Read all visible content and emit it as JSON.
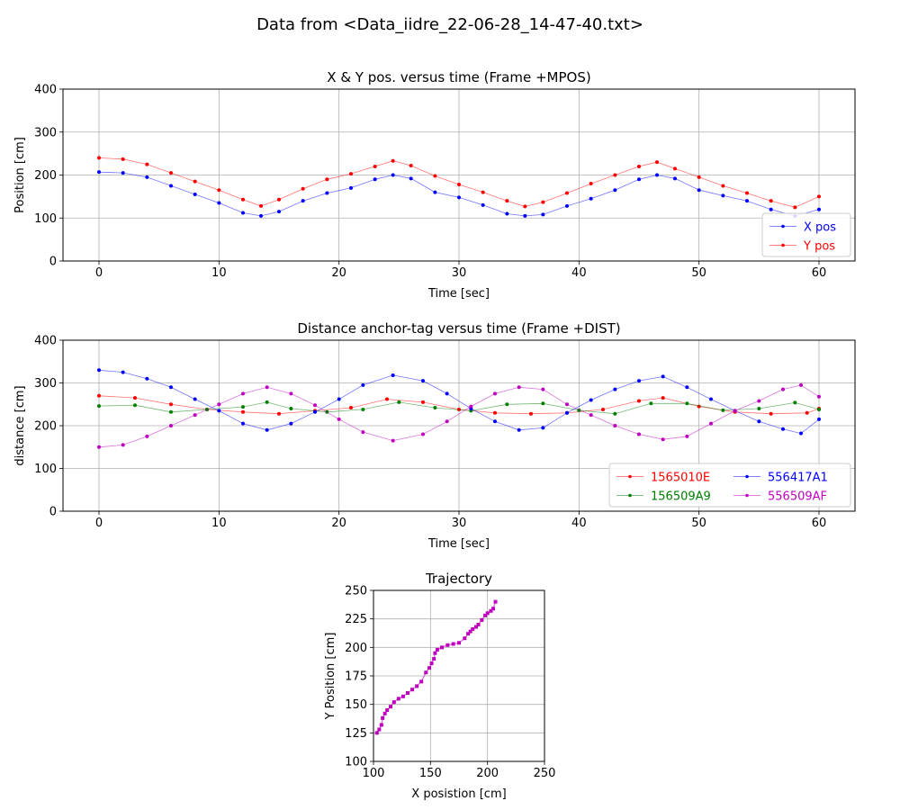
{
  "figure": {
    "suptitle": "Data from <Data_iidre_22-06-28_14-47-40.txt>"
  },
  "colors": {
    "red": "#ff0000",
    "blue": "#0000ff",
    "green": "#008000",
    "magenta": "#bf00bf",
    "grid": "#b0b0b0"
  },
  "chart_data": [
    {
      "id": "pos",
      "type": "line",
      "title": "X & Y pos. versus time (Frame +MPOS)",
      "xlabel": "Time [sec]",
      "ylabel": "Position [cm]",
      "xlim": [
        -3,
        63
      ],
      "ylim": [
        0,
        400
      ],
      "xticks": [
        0,
        10,
        20,
        30,
        40,
        50,
        60
      ],
      "yticks": [
        0,
        100,
        200,
        300,
        400
      ],
      "grid": true,
      "legend": {
        "placement": "lower-right",
        "columns": 1
      },
      "series": [
        {
          "name": "X pos",
          "color": "blue",
          "x": [
            0,
            2,
            4,
            6,
            8,
            10,
            12,
            13.5,
            15,
            17,
            19,
            21,
            23,
            24.5,
            26,
            28,
            30,
            32,
            34,
            35.5,
            37,
            39,
            41,
            43,
            45,
            46.5,
            48,
            50,
            52,
            54,
            56,
            58,
            60
          ],
          "y": [
            207,
            205,
            195,
            175,
            155,
            135,
            112,
            105,
            115,
            140,
            158,
            170,
            190,
            200,
            192,
            160,
            148,
            130,
            110,
            105,
            108,
            128,
            145,
            165,
            190,
            200,
            192,
            165,
            152,
            140,
            120,
            105,
            120
          ]
        },
        {
          "name": "Y pos",
          "color": "red",
          "x": [
            0,
            2,
            4,
            6,
            8,
            10,
            12,
            13.5,
            15,
            17,
            19,
            21,
            23,
            24.5,
            26,
            28,
            30,
            32,
            34,
            35.5,
            37,
            39,
            41,
            43,
            45,
            46.5,
            48,
            50,
            52,
            54,
            56,
            58,
            60
          ],
          "y": [
            240,
            237,
            225,
            205,
            185,
            165,
            143,
            128,
            143,
            168,
            190,
            203,
            220,
            233,
            222,
            198,
            178,
            160,
            140,
            127,
            137,
            158,
            180,
            200,
            220,
            230,
            215,
            195,
            175,
            158,
            140,
            125,
            150
          ]
        }
      ]
    },
    {
      "id": "dist",
      "type": "line",
      "title": "Distance anchor-tag versus time (Frame +DIST)",
      "xlabel": "Time [sec]",
      "ylabel": "distance [cm]",
      "xlim": [
        -3,
        63
      ],
      "ylim": [
        0,
        400
      ],
      "xticks": [
        0,
        10,
        20,
        30,
        40,
        50,
        60
      ],
      "yticks": [
        0,
        100,
        200,
        300,
        400
      ],
      "grid": true,
      "legend": {
        "placement": "lower-right",
        "columns": 2
      },
      "series": [
        {
          "name": "1565010E",
          "color": "red",
          "x": [
            0,
            3,
            6,
            9,
            12,
            15,
            18,
            21,
            24,
            27,
            30,
            33,
            36,
            39,
            42,
            45,
            47,
            50,
            53,
            56,
            59,
            60
          ],
          "y": [
            270,
            265,
            250,
            238,
            232,
            228,
            235,
            242,
            262,
            255,
            238,
            230,
            228,
            230,
            238,
            258,
            265,
            245,
            232,
            228,
            230,
            240
          ]
        },
        {
          "name": "156509A9",
          "color": "green",
          "x": [
            0,
            3,
            6,
            9,
            12,
            14,
            16,
            19,
            22,
            25,
            28,
            31,
            34,
            37,
            40,
            43,
            46,
            49,
            52,
            55,
            58,
            60
          ],
          "y": [
            246,
            248,
            232,
            238,
            244,
            255,
            240,
            232,
            238,
            255,
            242,
            235,
            250,
            252,
            236,
            228,
            252,
            252,
            236,
            240,
            254,
            238
          ]
        },
        {
          "name": "556417A1",
          "color": "blue",
          "x": [
            0,
            2,
            4,
            6,
            8,
            10,
            12,
            14,
            16,
            18,
            20,
            22,
            24.5,
            27,
            29,
            31,
            33,
            35,
            37,
            39,
            41,
            43,
            45,
            47,
            49,
            51,
            53,
            55,
            57,
            58.5,
            60
          ],
          "y": [
            330,
            325,
            310,
            290,
            262,
            235,
            205,
            190,
            205,
            232,
            262,
            295,
            318,
            305,
            275,
            240,
            210,
            190,
            195,
            230,
            260,
            285,
            305,
            315,
            290,
            262,
            235,
            210,
            192,
            182,
            215
          ]
        },
        {
          "name": "556509AF",
          "color": "magenta",
          "x": [
            0,
            2,
            4,
            6,
            8,
            10,
            12,
            14,
            16,
            18,
            20,
            22,
            24.5,
            27,
            29,
            31,
            33,
            35,
            37,
            39,
            41,
            43,
            45,
            47,
            49,
            51,
            53,
            55,
            57,
            58.5,
            60
          ],
          "y": [
            150,
            155,
            175,
            200,
            225,
            250,
            275,
            290,
            275,
            248,
            215,
            185,
            165,
            180,
            210,
            245,
            275,
            290,
            285,
            250,
            225,
            200,
            180,
            168,
            175,
            205,
            235,
            258,
            285,
            295,
            268
          ]
        }
      ]
    },
    {
      "id": "traj",
      "type": "scatter",
      "title": "Trajectory",
      "xlabel": "X posistion [cm]",
      "ylabel": "Y Position [cm]",
      "xlim": [
        100,
        250
      ],
      "ylim": [
        100,
        250
      ],
      "xticks": [
        100,
        150,
        200,
        250
      ],
      "yticks": [
        100,
        125,
        150,
        175,
        200,
        225,
        250
      ],
      "grid": true,
      "series": [
        {
          "name": "",
          "color": "magenta",
          "x": [
            103,
            105,
            107,
            108,
            110,
            112,
            115,
            118,
            122,
            126,
            130,
            134,
            138,
            142,
            146,
            149,
            151,
            153,
            154,
            156,
            160,
            165,
            170,
            175,
            180,
            183,
            185,
            187,
            190,
            192,
            195,
            198,
            200,
            203,
            205,
            207
          ],
          "y": [
            125,
            128,
            132,
            138,
            142,
            145,
            148,
            152,
            155,
            157,
            160,
            163,
            166,
            170,
            178,
            182,
            186,
            190,
            195,
            198,
            200,
            202,
            203,
            204,
            208,
            212,
            214,
            216,
            218,
            220,
            224,
            228,
            230,
            232,
            234,
            240
          ]
        }
      ]
    }
  ]
}
